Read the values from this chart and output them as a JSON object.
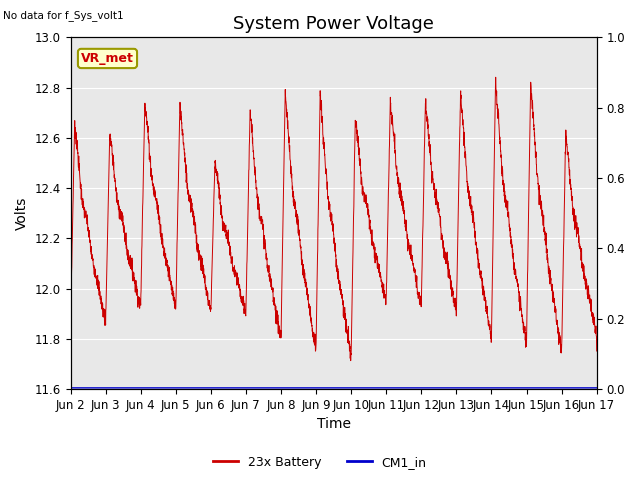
{
  "title": "System Power Voltage",
  "no_data_label": "No data for f_Sys_volt1",
  "xlabel": "Time",
  "ylabel": "Volts",
  "ylim_left": [
    11.6,
    13.0
  ],
  "ylim_right": [
    0.0,
    1.0
  ],
  "yticks_left": [
    11.6,
    11.8,
    12.0,
    12.2,
    12.4,
    12.6,
    12.8,
    13.0
  ],
  "yticks_right": [
    0.0,
    0.2,
    0.4,
    0.6,
    0.8,
    1.0
  ],
  "xtick_labels": [
    "Jun 2",
    "Jun 3",
    "Jun 4",
    "Jun 5",
    "Jun 6",
    "Jun 7",
    "Jun 8",
    "Jun 9",
    "Jun 10",
    "Jun 11",
    "Jun 12",
    "Jun 13",
    "Jun 14",
    "Jun 15",
    "Jun 16",
    "Jun 17"
  ],
  "vr_met_label": "VR_met",
  "vr_met_bbox_facecolor": "#ffffcc",
  "vr_met_bbox_edgecolor": "#999900",
  "vr_met_text_color": "#cc0000",
  "line_color_battery": "#cc0000",
  "line_color_cm1": "#0000cc",
  "legend_labels": [
    "23x Battery",
    "CM1_in"
  ],
  "bg_patch_color": "#e8e8e8",
  "title_fontsize": 13,
  "axis_label_fontsize": 10,
  "tick_fontsize": 8.5,
  "figsize": [
    6.4,
    4.8
  ],
  "dpi": 100
}
